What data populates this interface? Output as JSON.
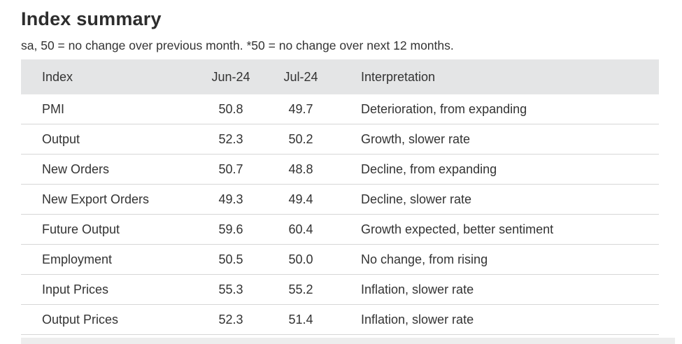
{
  "page": {
    "title": "Index summary",
    "subtitle": "sa, 50 = no change over previous month. *50 = no change over next 12 months."
  },
  "table": {
    "headers": [
      "Index",
      "Jun-24",
      "Jul-24",
      "Interpretation"
    ],
    "rows": [
      {
        "name": "PMI",
        "jun": "50.8",
        "jul": "49.7",
        "interp": "Deterioration, from expanding"
      },
      {
        "name": "Output",
        "jun": "52.3",
        "jul": "50.2",
        "interp": "Growth, slower rate"
      },
      {
        "name": "New Orders",
        "jun": "50.7",
        "jul": "48.8",
        "interp": "Decline, from expanding"
      },
      {
        "name": "New Export Orders",
        "jun": "49.3",
        "jul": "49.4",
        "interp": "Decline, slower rate"
      },
      {
        "name": "Future Output",
        "jun": "59.6",
        "jul": "60.4",
        "interp": "Growth expected, better sentiment"
      },
      {
        "name": "Employment",
        "jun": "50.5",
        "jul": "50.0",
        "interp": "No change, from rising"
      },
      {
        "name": "Input Prices",
        "jun": "55.3",
        "jul": "55.2",
        "interp": "Inflation, slower rate"
      },
      {
        "name": "Output Prices",
        "jun": "52.3",
        "jul": "51.4",
        "interp": "Inflation, slower rate"
      }
    ]
  },
  "chart_data": {
    "type": "table",
    "title": "Index summary",
    "subtitle": "sa, 50 = no change over previous month. *50 = no change over next 12 months.",
    "columns": [
      "Index",
      "Jun-24",
      "Jul-24",
      "Interpretation"
    ],
    "rows": [
      [
        "PMI",
        50.8,
        49.7,
        "Deterioration, from expanding"
      ],
      [
        "Output",
        52.3,
        50.2,
        "Growth, slower rate"
      ],
      [
        "New Orders",
        50.7,
        48.8,
        "Decline, from expanding"
      ],
      [
        "New Export Orders",
        49.3,
        49.4,
        "Decline, slower rate"
      ],
      [
        "Future Output",
        59.6,
        60.4,
        "Growth expected, better sentiment"
      ],
      [
        "Employment",
        50.5,
        50.0,
        "No change, from rising"
      ],
      [
        "Input Prices",
        55.3,
        55.2,
        "Inflation, slower rate"
      ],
      [
        "Output Prices",
        52.3,
        51.4,
        "Inflation, slower rate"
      ]
    ],
    "layout": {
      "header_background": "#e4e5e6",
      "row_divider_color": "#d7d7d7",
      "text_color": "#333333",
      "grid": "horizontal-dividers-only"
    }
  },
  "colors": {
    "header_bg": "#e4e5e6",
    "divider": "#d7d7d7",
    "text": "#333333",
    "bottom_strip": "#ededed"
  }
}
